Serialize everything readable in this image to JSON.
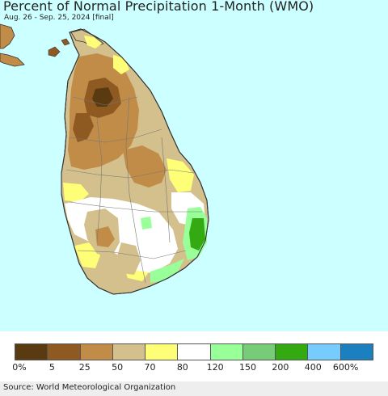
{
  "header": {
    "title": "Percent of Normal Precipitation 1-Month (WMO)",
    "subtitle": "Aug. 26 - Sep. 25, 2024 [final]"
  },
  "legend": {
    "colors": [
      "#5a3a10",
      "#8f5a22",
      "#c08c48",
      "#d4c08c",
      "#ffff77",
      "#ffffff",
      "#99ff99",
      "#77cc77",
      "#33aa11",
      "#77ccff",
      "#1c7fbf"
    ],
    "labels": [
      "0%",
      "5",
      "25",
      "50",
      "70",
      "80",
      "120",
      "150",
      "200",
      "400",
      "600%"
    ]
  },
  "footer": {
    "source": "Source: World Meteorological Organization"
  },
  "colors": {
    "sea": "#ccffff",
    "land_white": "#ffffff",
    "dark_brown": "#5a3a10",
    "brown": "#8f5a22",
    "tan": "#c08c48",
    "light_tan": "#d4c08c",
    "yellow": "#ffff77",
    "light_green": "#99ff99",
    "mid_green": "#77cc77",
    "green": "#33aa11"
  }
}
